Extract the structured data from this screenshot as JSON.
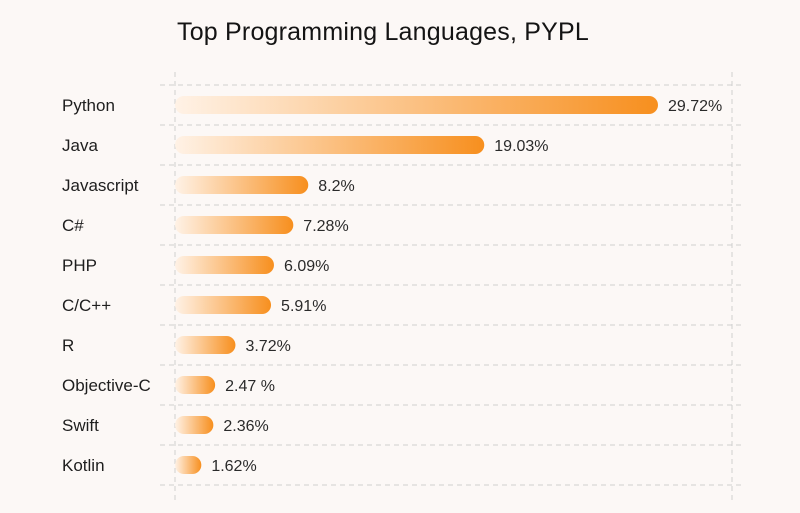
{
  "chart_data": {
    "type": "bar",
    "orientation": "horizontal",
    "title": "Top Programming Languages, PYPL",
    "categories": [
      "Python",
      "Java",
      "Javascript",
      "C#",
      "PHP",
      "C/C++",
      "R",
      "Objective-C",
      "Swift",
      "Kotlin"
    ],
    "values": [
      29.72,
      19.03,
      8.2,
      7.28,
      6.09,
      5.91,
      3.72,
      2.47,
      2.36,
      1.62
    ],
    "value_labels": [
      "29.72%",
      "19.03%",
      "8.2%",
      "7.28%",
      "6.09%",
      "5.91%",
      "3.72%",
      "2.47 %",
      "2.36%",
      "1.62%"
    ],
    "xlim": [
      0,
      30
    ],
    "grid": true,
    "colors": {
      "bar_start": "#fff2e6",
      "bar_end": "#f78f1e",
      "grid": "#cfcfcf",
      "background": "#fcf8f6"
    }
  }
}
